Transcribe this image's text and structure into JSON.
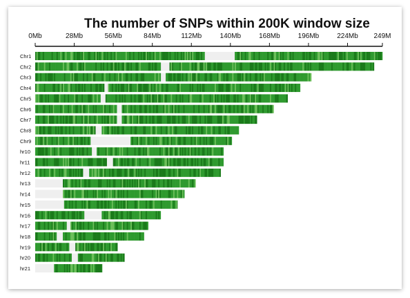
{
  "chart_data": {
    "type": "heatmap",
    "title": "The number of SNPs within 200K window size",
    "xlabel": "",
    "ylabel": "",
    "x_ticks": [
      "0Mb",
      "28Mb",
      "56Mb",
      "84Mb",
      "112Mb",
      "140Mb",
      "168Mb",
      "196Mb",
      "224Mb",
      "249M"
    ],
    "x_tick_values": [
      0,
      28,
      56,
      84,
      112,
      140,
      168,
      196,
      224,
      249
    ],
    "xlim": [
      0,
      249
    ],
    "colors": {
      "dense": "#1a7a1a",
      "medium": "#2f9a2f",
      "light": "#6cbf5a",
      "gap": "#efefef"
    },
    "chromosomes": [
      {
        "label": "Chr1",
        "length_mb": 249,
        "gaps_mb": [
          [
            121,
            143
          ]
        ]
      },
      {
        "label": "Chr2",
        "length_mb": 243,
        "gaps_mb": [
          [
            90,
            96
          ]
        ]
      },
      {
        "label": "Chr3",
        "length_mb": 198,
        "gaps_mb": [
          [
            90,
            93
          ]
        ]
      },
      {
        "label": "Chr4",
        "length_mb": 190,
        "gaps_mb": [
          [
            49,
            52
          ]
        ]
      },
      {
        "label": "Chr5",
        "length_mb": 181,
        "gaps_mb": [
          [
            46,
            50
          ]
        ]
      },
      {
        "label": "Chr6",
        "length_mb": 171,
        "gaps_mb": [
          [
            58,
            62
          ]
        ]
      },
      {
        "label": "Chr7",
        "length_mb": 159,
        "gaps_mb": [
          [
            58,
            62
          ]
        ]
      },
      {
        "label": "Chr8",
        "length_mb": 146,
        "gaps_mb": [
          [
            43,
            47
          ]
        ]
      },
      {
        "label": "Chr9",
        "length_mb": 141,
        "gaps_mb": [
          [
            39,
            68
          ]
        ]
      },
      {
        "label": "hr10",
        "length_mb": 135,
        "gaps_mb": [
          [
            40,
            44
          ]
        ]
      },
      {
        "label": "hr11",
        "length_mb": 135,
        "gaps_mb": [
          [
            51,
            55
          ]
        ]
      },
      {
        "label": "hr12",
        "length_mb": 133,
        "gaps_mb": [
          [
            34,
            38
          ]
        ]
      },
      {
        "label": "hr13",
        "length_mb": 115,
        "gaps_mb": [
          [
            0,
            19
          ]
        ]
      },
      {
        "label": "hr14",
        "length_mb": 107,
        "gaps_mb": [
          [
            0,
            19
          ]
        ]
      },
      {
        "label": "hr15",
        "length_mb": 102,
        "gaps_mb": [
          [
            0,
            20
          ]
        ]
      },
      {
        "label": "hr16",
        "length_mb": 90,
        "gaps_mb": [
          [
            35,
            47
          ]
        ]
      },
      {
        "label": "hr17",
        "length_mb": 81,
        "gaps_mb": [
          [
            22,
            25
          ]
        ]
      },
      {
        "label": "hr18",
        "length_mb": 78,
        "gaps_mb": [
          [
            15,
            19
          ]
        ]
      },
      {
        "label": "hr19",
        "length_mb": 59,
        "gaps_mb": [
          [
            24,
            28
          ]
        ]
      },
      {
        "label": "hr20",
        "length_mb": 64,
        "gaps_mb": [
          [
            26,
            30
          ]
        ]
      },
      {
        "label": "hr21",
        "length_mb": 48,
        "gaps_mb": [
          [
            0,
            13
          ]
        ]
      }
    ]
  }
}
